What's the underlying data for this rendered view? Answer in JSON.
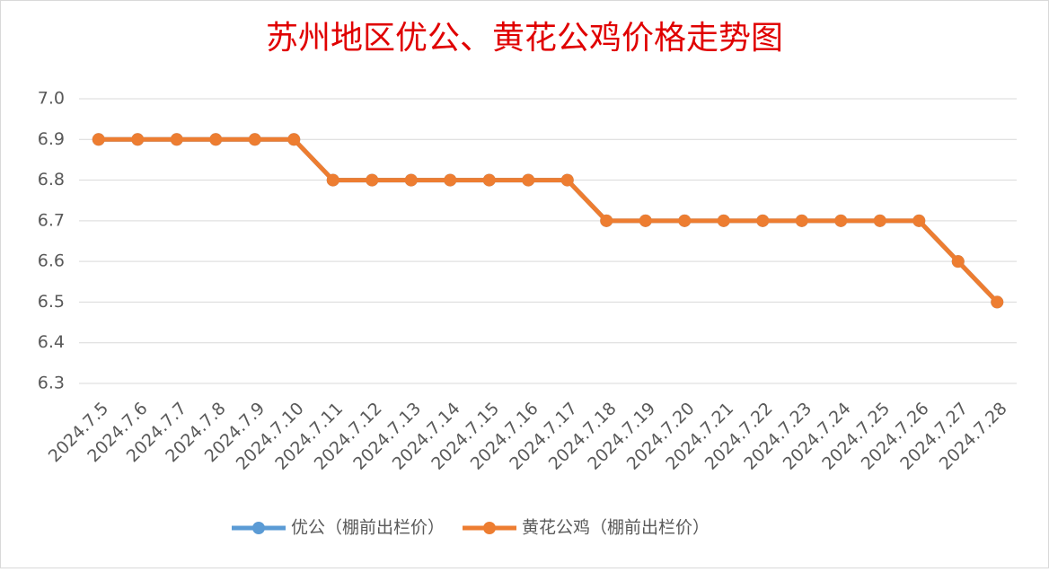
{
  "chart_data": {
    "type": "line",
    "title": "苏州地区优公、黄花公鸡价格走势图",
    "categories": [
      "2024.7.5",
      "2024.7.6",
      "2024.7.7",
      "2024.7.8",
      "2024.7.9",
      "2024.7.10",
      "2024.7.11",
      "2024.7.12",
      "2024.7.13",
      "2024.7.14",
      "2024.7.15",
      "2024.7.16",
      "2024.7.17",
      "2024.7.18",
      "2024.7.19",
      "2024.7.20",
      "2024.7.21",
      "2024.7.22",
      "2024.7.23",
      "2024.7.24",
      "2024.7.25",
      "2024.7.26",
      "2024.7.27",
      "2024.7.28"
    ],
    "series": [
      {
        "name": "优公（棚前出栏价）",
        "color": "#5b9bd5",
        "values": [
          6.9,
          6.9,
          6.9,
          6.9,
          6.9,
          6.9,
          6.8,
          6.8,
          6.8,
          6.8,
          6.8,
          6.8,
          6.8,
          6.7,
          6.7,
          6.7,
          6.7,
          6.7,
          6.7,
          6.7,
          6.7,
          6.7,
          6.6,
          6.5
        ]
      },
      {
        "name": "黄花公鸡（棚前出栏价）",
        "color": "#ed7d31",
        "values": [
          6.9,
          6.9,
          6.9,
          6.9,
          6.9,
          6.9,
          6.8,
          6.8,
          6.8,
          6.8,
          6.8,
          6.8,
          6.8,
          6.7,
          6.7,
          6.7,
          6.7,
          6.7,
          6.7,
          6.7,
          6.7,
          6.7,
          6.6,
          6.5
        ]
      }
    ],
    "ylim": [
      6.3,
      7
    ],
    "yticks": [
      6.3,
      6.4,
      6.5,
      6.6,
      6.7,
      6.8,
      6.9,
      {
        "value": 7,
        "label": "7.0"
      }
    ],
    "grid": true,
    "legend": "bottom"
  }
}
